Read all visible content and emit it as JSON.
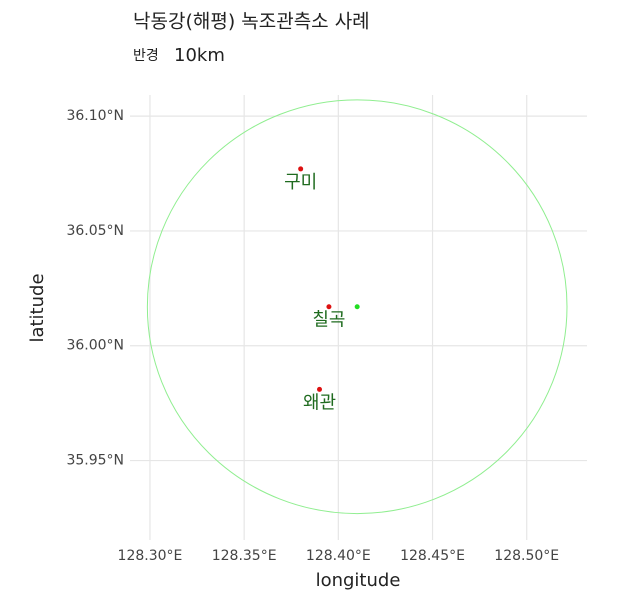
{
  "chart_data": {
    "type": "scatter",
    "title": "낙동강(해평) 녹조관측소 사례",
    "subtitle": {
      "prefix": "반경",
      "value": "10km"
    },
    "x_label": "longitude",
    "y_label": "latitude",
    "xlim": [
      128.2894,
      128.532
    ],
    "ylim": [
      35.9154,
      36.1092
    ],
    "xticks": [
      {
        "value": 128.3,
        "label": "128.30°E"
      },
      {
        "value": 128.35,
        "label": "128.35°E"
      },
      {
        "value": 128.4,
        "label": "128.40°E"
      },
      {
        "value": 128.45,
        "label": "128.45°E"
      },
      {
        "value": 128.5,
        "label": "128.50°E"
      }
    ],
    "yticks": [
      {
        "value": 35.95,
        "label": "35.95°N"
      },
      {
        "value": 36.0,
        "label": "36.00°N"
      },
      {
        "value": 36.05,
        "label": "36.05°N"
      },
      {
        "value": 36.1,
        "label": "36.10°N"
      }
    ],
    "grid": true,
    "points": {
      "labels": [
        "구미",
        "칠곡",
        "왜관"
      ],
      "x": [
        128.38,
        128.395,
        128.39
      ],
      "y": [
        36.077,
        36.017,
        35.981
      ],
      "color": "#dd1111",
      "label_color": "#1f6b1f"
    },
    "center": {
      "x": 128.41,
      "y": 36.017,
      "color": "#22dd22"
    },
    "circle": {
      "radius_km": 10,
      "color": "#90ee90"
    }
  }
}
